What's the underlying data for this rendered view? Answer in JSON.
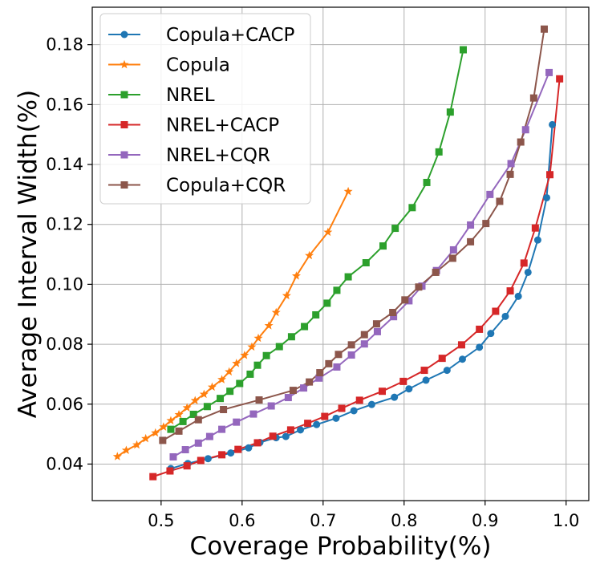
{
  "chart_data": {
    "type": "line",
    "title": "",
    "xlabel": "Coverage Probability(%)",
    "ylabel": "Average Interval Width(%)",
    "xlim": [
      0.415,
      1.028
    ],
    "ylim": [
      0.0278,
      0.1925
    ],
    "xticks": [
      0.5,
      0.6,
      0.7,
      0.8,
      0.9,
      1.0
    ],
    "xtick_labels": [
      "0.5",
      "0.6",
      "0.7",
      "0.8",
      "0.9",
      "1.0"
    ],
    "yticks": [
      0.04,
      0.06,
      0.08,
      0.1,
      0.12,
      0.14,
      0.16,
      0.18
    ],
    "ytick_labels": [
      "0.04",
      "0.06",
      "0.08",
      "0.10",
      "0.12",
      "0.14",
      "0.16",
      "0.18"
    ],
    "grid": true,
    "legend_position": "top-left",
    "series": [
      {
        "name": "Copula+CACP",
        "color": "#1f77b4",
        "marker": "circle",
        "points": [
          [
            0.512,
            0.0385
          ],
          [
            0.533,
            0.0402
          ],
          [
            0.558,
            0.0418
          ],
          [
            0.586,
            0.0437
          ],
          [
            0.608,
            0.0454
          ],
          [
            0.622,
            0.0472
          ],
          [
            0.642,
            0.0488
          ],
          [
            0.654,
            0.0492
          ],
          [
            0.672,
            0.0514
          ],
          [
            0.692,
            0.0532
          ],
          [
            0.716,
            0.0553
          ],
          [
            0.738,
            0.0578
          ],
          [
            0.76,
            0.0599
          ],
          [
            0.788,
            0.0623
          ],
          [
            0.806,
            0.0651
          ],
          [
            0.827,
            0.068
          ],
          [
            0.853,
            0.0713
          ],
          [
            0.872,
            0.075
          ],
          [
            0.893,
            0.079
          ],
          [
            0.907,
            0.0836
          ],
          [
            0.925,
            0.0893
          ],
          [
            0.941,
            0.096
          ],
          [
            0.953,
            0.104
          ],
          [
            0.965,
            0.1148
          ],
          [
            0.976,
            0.1289
          ],
          [
            0.983,
            0.1533
          ]
        ]
      },
      {
        "name": "Copula",
        "color": "#ff7f0e",
        "marker": "star",
        "points": [
          [
            0.446,
            0.0425
          ],
          [
            0.457,
            0.0446
          ],
          [
            0.47,
            0.0464
          ],
          [
            0.481,
            0.0485
          ],
          [
            0.493,
            0.0504
          ],
          [
            0.503,
            0.0524
          ],
          [
            0.512,
            0.0545
          ],
          [
            0.522,
            0.0565
          ],
          [
            0.532,
            0.0588
          ],
          [
            0.542,
            0.0612
          ],
          [
            0.553,
            0.0633
          ],
          [
            0.563,
            0.0657
          ],
          [
            0.575,
            0.0682
          ],
          [
            0.584,
            0.0708
          ],
          [
            0.593,
            0.0736
          ],
          [
            0.603,
            0.0763
          ],
          [
            0.612,
            0.0791
          ],
          [
            0.62,
            0.082
          ],
          [
            0.633,
            0.0862
          ],
          [
            0.642,
            0.0906
          ],
          [
            0.655,
            0.0962
          ],
          [
            0.667,
            0.1028
          ],
          [
            0.683,
            0.1096
          ],
          [
            0.706,
            0.1174
          ],
          [
            0.731,
            0.131
          ]
        ]
      },
      {
        "name": "NREL",
        "color": "#2ca02c",
        "marker": "square",
        "points": [
          [
            0.512,
            0.0516
          ],
          [
            0.527,
            0.0542
          ],
          [
            0.54,
            0.0566
          ],
          [
            0.557,
            0.0592
          ],
          [
            0.573,
            0.0619
          ],
          [
            0.585,
            0.0643
          ],
          [
            0.597,
            0.0669
          ],
          [
            0.61,
            0.07
          ],
          [
            0.619,
            0.073
          ],
          [
            0.63,
            0.0762
          ],
          [
            0.646,
            0.0792
          ],
          [
            0.661,
            0.0825
          ],
          [
            0.677,
            0.0859
          ],
          [
            0.691,
            0.0898
          ],
          [
            0.705,
            0.0937
          ],
          [
            0.717,
            0.098
          ],
          [
            0.731,
            0.1025
          ],
          [
            0.753,
            0.1072
          ],
          [
            0.774,
            0.1128
          ],
          [
            0.789,
            0.1187
          ],
          [
            0.81,
            0.1256
          ],
          [
            0.828,
            0.134
          ],
          [
            0.843,
            0.1442
          ],
          [
            0.857,
            0.1575
          ],
          [
            0.873,
            0.1783
          ]
        ]
      },
      {
        "name": "NREL+CACP",
        "color": "#d62728",
        "marker": "square",
        "points": [
          [
            0.49,
            0.0358
          ],
          [
            0.511,
            0.0377
          ],
          [
            0.532,
            0.0394
          ],
          [
            0.549,
            0.0412
          ],
          [
            0.575,
            0.0431
          ],
          [
            0.595,
            0.0449
          ],
          [
            0.619,
            0.0471
          ],
          [
            0.638,
            0.0493
          ],
          [
            0.66,
            0.0514
          ],
          [
            0.681,
            0.0536
          ],
          [
            0.702,
            0.0559
          ],
          [
            0.723,
            0.0586
          ],
          [
            0.745,
            0.0613
          ],
          [
            0.773,
            0.0643
          ],
          [
            0.799,
            0.0676
          ],
          [
            0.825,
            0.0713
          ],
          [
            0.847,
            0.0753
          ],
          [
            0.871,
            0.0798
          ],
          [
            0.893,
            0.085
          ],
          [
            0.913,
            0.091
          ],
          [
            0.931,
            0.0978
          ],
          [
            0.948,
            0.1071
          ],
          [
            0.962,
            0.1188
          ],
          [
            0.98,
            0.1366
          ],
          [
            0.992,
            0.1686
          ]
        ]
      },
      {
        "name": "NREL+CQR",
        "color": "#9467bd",
        "marker": "square",
        "points": [
          [
            0.515,
            0.0424
          ],
          [
            0.53,
            0.0448
          ],
          [
            0.546,
            0.047
          ],
          [
            0.56,
            0.0492
          ],
          [
            0.575,
            0.0516
          ],
          [
            0.593,
            0.054
          ],
          [
            0.614,
            0.0567
          ],
          [
            0.636,
            0.0594
          ],
          [
            0.657,
            0.0622
          ],
          [
            0.676,
            0.0654
          ],
          [
            0.695,
            0.0687
          ],
          [
            0.717,
            0.0724
          ],
          [
            0.735,
            0.0764
          ],
          [
            0.751,
            0.0801
          ],
          [
            0.767,
            0.0842
          ],
          [
            0.787,
            0.0892
          ],
          [
            0.806,
            0.0945
          ],
          [
            0.822,
            0.0994
          ],
          [
            0.84,
            0.1046
          ],
          [
            0.861,
            0.1115
          ],
          [
            0.882,
            0.1198
          ],
          [
            0.906,
            0.13
          ],
          [
            0.932,
            0.1403
          ],
          [
            0.95,
            0.1516
          ],
          [
            0.979,
            0.1707
          ]
        ]
      },
      {
        "name": "Copula+CQR",
        "color": "#8c564b",
        "marker": "square",
        "points": [
          [
            0.502,
            0.0479
          ],
          [
            0.522,
            0.051
          ],
          [
            0.546,
            0.0548
          ],
          [
            0.577,
            0.0582
          ],
          [
            0.621,
            0.0614
          ],
          [
            0.663,
            0.0646
          ],
          [
            0.683,
            0.0674
          ],
          [
            0.696,
            0.0705
          ],
          [
            0.707,
            0.0735
          ],
          [
            0.719,
            0.0766
          ],
          [
            0.735,
            0.0798
          ],
          [
            0.751,
            0.0832
          ],
          [
            0.766,
            0.0868
          ],
          [
            0.786,
            0.0906
          ],
          [
            0.801,
            0.0948
          ],
          [
            0.818,
            0.0991
          ],
          [
            0.839,
            0.104
          ],
          [
            0.86,
            0.1087
          ],
          [
            0.882,
            0.1142
          ],
          [
            0.901,
            0.1203
          ],
          [
            0.918,
            0.1277
          ],
          [
            0.931,
            0.1367
          ],
          [
            0.944,
            0.1475
          ],
          [
            0.96,
            0.1622
          ],
          [
            0.973,
            0.1852
          ]
        ]
      }
    ]
  }
}
